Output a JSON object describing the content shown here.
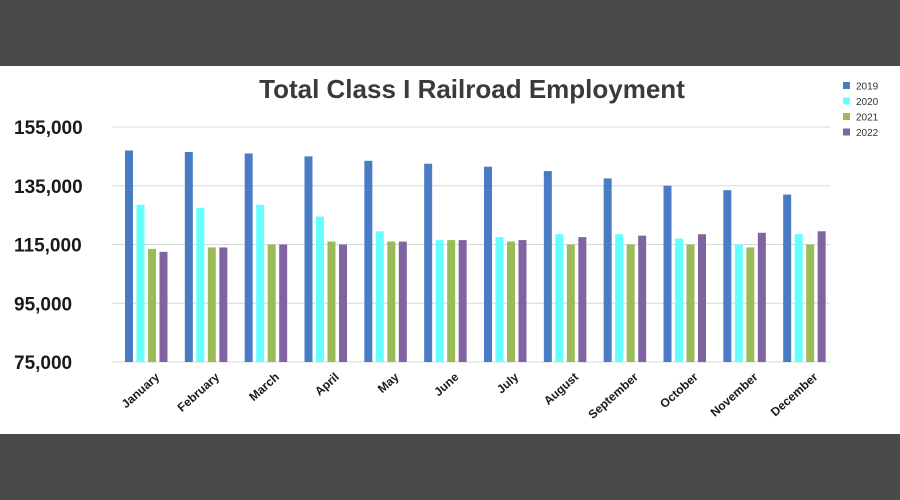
{
  "chart_data": {
    "type": "bar",
    "title": "Total Class I Railroad Employment",
    "xlabel": "",
    "ylabel": "",
    "ylim": [
      75000,
      155000
    ],
    "yticks": [
      "155,000",
      "135,000",
      "115,000",
      "95,000",
      "75,000"
    ],
    "ytick_values": [
      155000,
      135000,
      115000,
      95000,
      75000
    ],
    "grid": true,
    "legend_position": "top-right",
    "categories": [
      "January",
      "February",
      "March",
      "April",
      "May",
      "June",
      "July",
      "August",
      "September",
      "October",
      "November",
      "December"
    ],
    "series": [
      {
        "name": "2019",
        "color": "#4a7cc4",
        "values": [
          147000,
          146500,
          146000,
          145000,
          143500,
          142500,
          141500,
          140000,
          137500,
          135000,
          133500,
          132000
        ]
      },
      {
        "name": "2020",
        "color": "#66ffff",
        "values": [
          128500,
          127500,
          128500,
          124500,
          119500,
          116500,
          117500,
          118500,
          118500,
          117000,
          115000,
          118500
        ]
      },
      {
        "name": "2021",
        "color": "#9bbb59",
        "values": [
          113500,
          114000,
          115000,
          116000,
          116000,
          116500,
          116000,
          115000,
          115000,
          115000,
          114000,
          115000
        ]
      },
      {
        "name": "2022",
        "color": "#8064a2",
        "values": [
          112500,
          114000,
          115000,
          115000,
          116000,
          116500,
          116500,
          117500,
          118000,
          118500,
          119000,
          119500
        ]
      }
    ]
  }
}
